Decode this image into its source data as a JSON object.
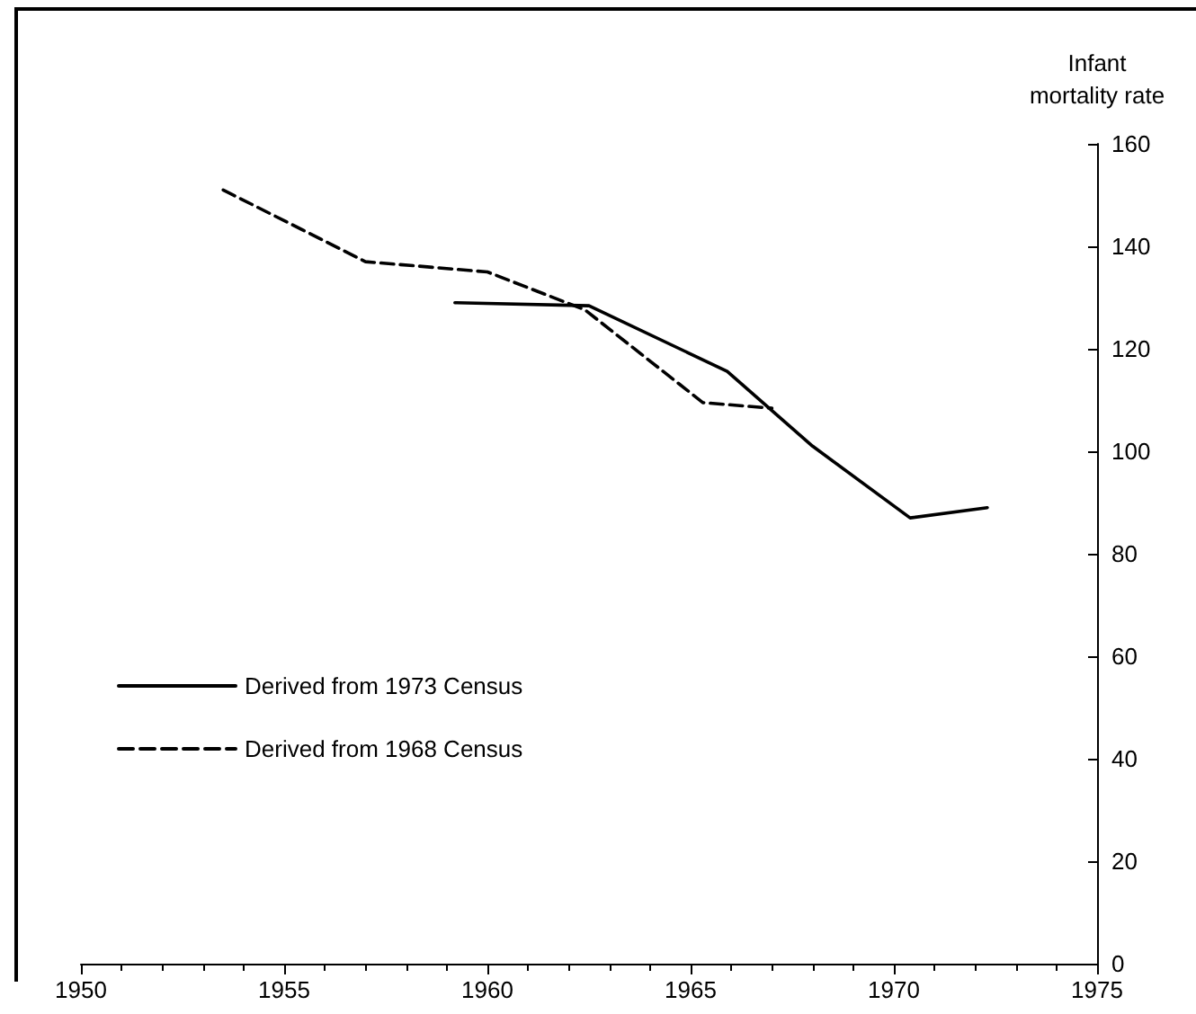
{
  "chart_data": {
    "type": "line",
    "ylabel": "Infant\nmortality rate",
    "legend": "bottom left",
    "grid": false,
    "marker": "none",
    "xlim": [
      1950,
      1975
    ],
    "xticks": [
      1950,
      1955,
      1960,
      1965,
      1970,
      1975
    ],
    "ylim": [
      0,
      160
    ],
    "yticks": [
      0,
      20,
      40,
      60,
      80,
      100,
      120,
      140,
      160
    ],
    "series": [
      {
        "name": "Derived from 1973 Census",
        "color": "#000000",
        "line_style": "solid",
        "x": [
          1959.2,
          1962.5,
          1965.9,
          1968,
          1970.4,
          1972.3
        ],
        "values": [
          129,
          128.4,
          115.6,
          101,
          87,
          89
        ]
      },
      {
        "name": "Derived from 1968 Census",
        "color": "#000000",
        "line_style": "dashed",
        "x": [
          1953.5,
          1957,
          1960,
          1962.4,
          1965.3,
          1967
        ],
        "values": [
          151,
          137,
          135,
          127.6,
          109.5,
          108.4
        ]
      }
    ]
  }
}
